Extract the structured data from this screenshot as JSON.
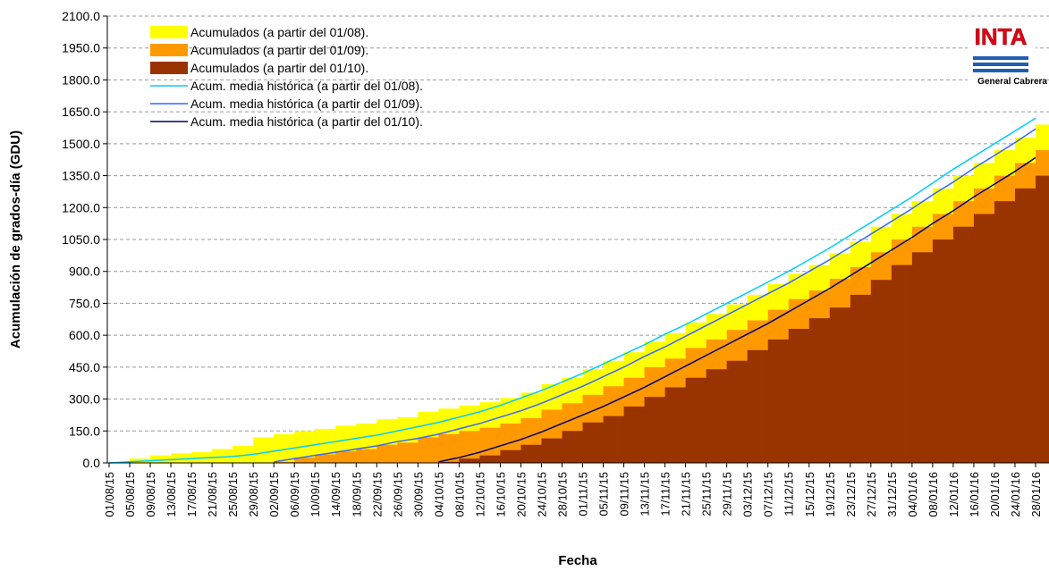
{
  "chart_data": {
    "type": "area",
    "x_label": "Fecha",
    "y_label": "Acumulación de grados-día (GDU)",
    "categories": [
      "01/08/15",
      "05/08/15",
      "09/08/15",
      "13/08/15",
      "17/08/15",
      "21/08/15",
      "25/08/15",
      "29/08/15",
      "02/09/15",
      "06/09/15",
      "10/09/15",
      "14/09/15",
      "18/09/15",
      "22/09/15",
      "26/09/15",
      "30/09/15",
      "04/10/15",
      "08/10/15",
      "12/10/15",
      "16/10/15",
      "20/10/15",
      "24/10/15",
      "28/10/15",
      "01/11/15",
      "05/11/15",
      "09/11/15",
      "13/11/15",
      "17/11/15",
      "21/11/15",
      "25/11/15",
      "29/11/15",
      "03/12/15",
      "07/12/15",
      "11/12/15",
      "15/12/15",
      "19/12/15",
      "23/12/15",
      "27/12/15",
      "31/12/15",
      "04/01/16",
      "08/01/16",
      "12/01/16",
      "16/01/16",
      "20/01/16",
      "24/01/16",
      "28/01/16"
    ],
    "series": [
      {
        "name": "Acumulados (a partir del 01/08).",
        "type": "area",
        "color": "#ffff00",
        "values": [
          0,
          20,
          35,
          45,
          50,
          65,
          80,
          120,
          135,
          150,
          160,
          175,
          185,
          205,
          215,
          240,
          255,
          270,
          285,
          305,
          330,
          370,
          400,
          440,
          480,
          520,
          570,
          610,
          660,
          700,
          745,
          790,
          840,
          890,
          930,
          985,
          1040,
          1110,
          1170,
          1230,
          1290,
          1350,
          1410,
          1470,
          1530,
          1590
        ]
      },
      {
        "name": "Acumulados (a partir del 01/09).",
        "type": "area",
        "color": "#ff9900",
        "values": [
          null,
          null,
          null,
          null,
          null,
          null,
          null,
          null,
          5,
          25,
          40,
          55,
          65,
          85,
          95,
          120,
          135,
          150,
          165,
          185,
          210,
          250,
          280,
          320,
          360,
          400,
          450,
          490,
          540,
          580,
          625,
          670,
          720,
          770,
          810,
          865,
          920,
          990,
          1050,
          1110,
          1170,
          1230,
          1290,
          1350,
          1410,
          1470
        ]
      },
      {
        "name": "Acumulados (a partir del 01/10).",
        "type": "area",
        "color": "#993300",
        "values": [
          null,
          null,
          null,
          null,
          null,
          null,
          null,
          null,
          null,
          null,
          null,
          null,
          null,
          null,
          null,
          null,
          5,
          20,
          35,
          60,
          85,
          115,
          150,
          190,
          220,
          265,
          310,
          355,
          400,
          440,
          480,
          530,
          580,
          630,
          680,
          730,
          790,
          860,
          930,
          990,
          1050,
          1110,
          1170,
          1230,
          1290,
          1350
        ]
      },
      {
        "name": "Acum. media histórica (a partir del 01/08).",
        "type": "line",
        "color": "#00ccff",
        "values": [
          0,
          5,
          10,
          15,
          20,
          25,
          30,
          40,
          55,
          70,
          85,
          100,
          115,
          130,
          150,
          170,
          190,
          215,
          240,
          270,
          305,
          340,
          380,
          420,
          465,
          510,
          555,
          605,
          650,
          700,
          750,
          800,
          850,
          900,
          955,
          1010,
          1070,
          1130,
          1190,
          1250,
          1315,
          1380,
          1440,
          1500,
          1560,
          1620
        ]
      },
      {
        "name": "Acum. media histórica (a partir del 01/09).",
        "type": "line",
        "color": "#3366ff",
        "values": [
          null,
          null,
          null,
          null,
          null,
          null,
          null,
          null,
          5,
          20,
          35,
          50,
          65,
          80,
          100,
          115,
          135,
          160,
          185,
          215,
          245,
          280,
          320,
          360,
          405,
          450,
          500,
          545,
          595,
          645,
          695,
          745,
          795,
          845,
          900,
          955,
          1015,
          1075,
          1135,
          1195,
          1260,
          1320,
          1385,
          1445,
          1505,
          1570
        ]
      },
      {
        "name": "Acum. media histórica (a partir del 01/10).",
        "type": "line",
        "color": "#000066",
        "values": [
          null,
          null,
          null,
          null,
          null,
          null,
          null,
          null,
          null,
          null,
          null,
          null,
          null,
          null,
          null,
          null,
          5,
          25,
          50,
          80,
          110,
          145,
          185,
          225,
          265,
          310,
          355,
          405,
          455,
          505,
          555,
          605,
          655,
          710,
          765,
          820,
          880,
          940,
          1000,
          1060,
          1125,
          1185,
          1250,
          1310,
          1370,
          1435
        ]
      }
    ],
    "ylim": [
      0,
      2100
    ],
    "yticks": [
      {
        "value": 0,
        "label": "0.0"
      },
      {
        "value": 150,
        "label": "150.0"
      },
      {
        "value": 300,
        "label": "300.0"
      },
      {
        "value": 450,
        "label": "450.0"
      },
      {
        "value": 600,
        "label": "600.0"
      },
      {
        "value": 750,
        "label": "750.0"
      },
      {
        "value": 900,
        "label": "900.0"
      },
      {
        "value": 1050,
        "label": "1050.0"
      },
      {
        "value": 1200,
        "label": "1200.0"
      },
      {
        "value": 1350,
        "label": "1350.0"
      },
      {
        "value": 1500,
        "label": "1500.0"
      },
      {
        "value": 1650,
        "label": "1650.0"
      },
      {
        "value": 1800,
        "label": "1800.0"
      },
      {
        "value": 1950,
        "label": "1950.0"
      },
      {
        "value": 2100,
        "label": "2100.0"
      }
    ],
    "grid": true,
    "legend": "top-left"
  },
  "logo": {
    "text": "INTA",
    "caption": "General Cabrera"
  }
}
